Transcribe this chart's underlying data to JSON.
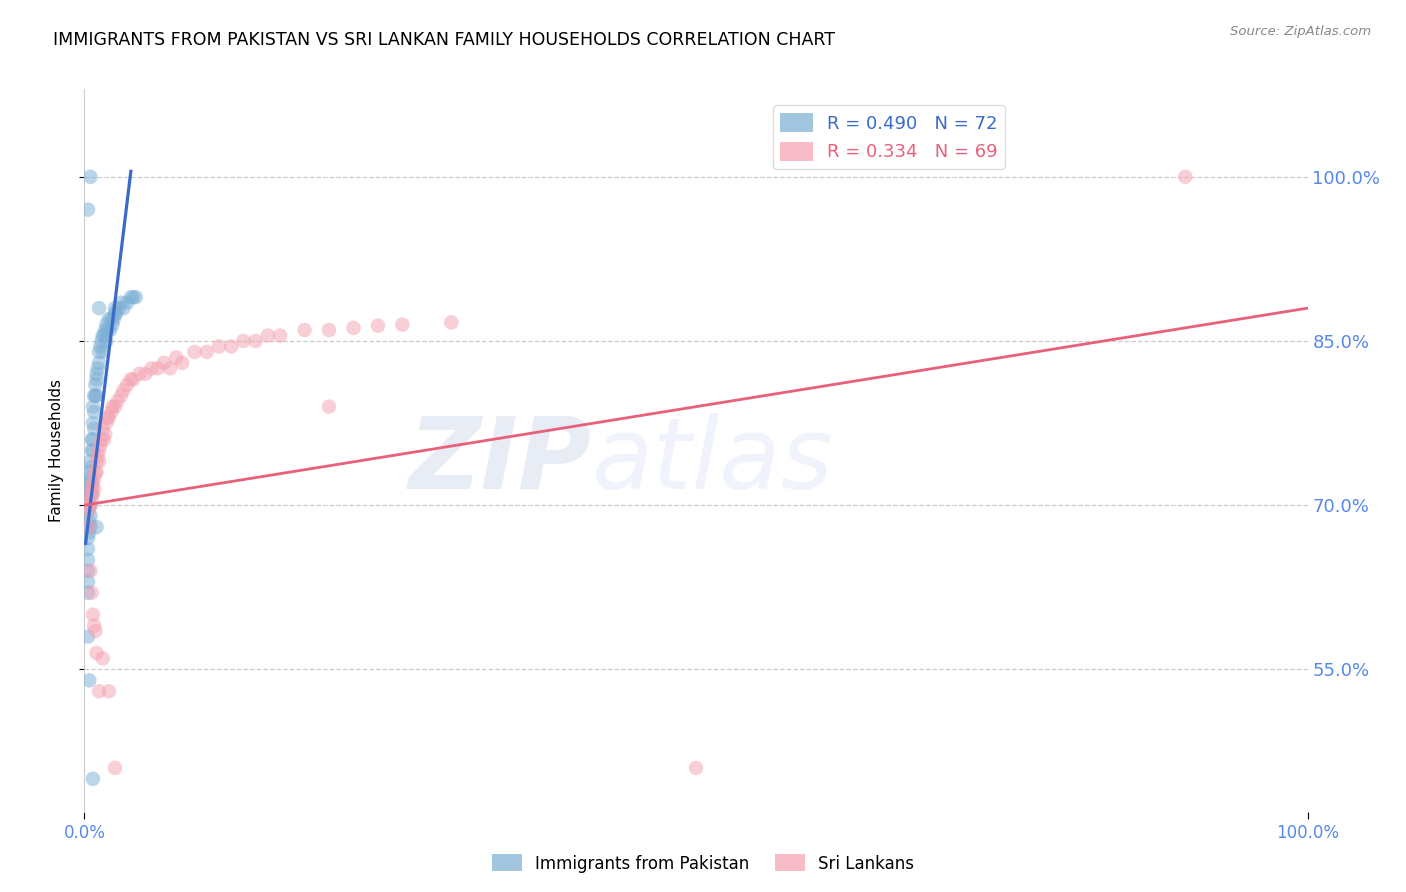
{
  "title": "IMMIGRANTS FROM PAKISTAN VS SRI LANKAN FAMILY HOUSEHOLDS CORRELATION CHART",
  "source": "Source: ZipAtlas.com",
  "ylabel": "Family Households",
  "xlim": [
    0.0,
    1.0
  ],
  "ylim": [
    0.42,
    1.08
  ],
  "blue_R": 0.49,
  "blue_N": 72,
  "pink_R": 0.334,
  "pink_N": 69,
  "blue_color": "#7BAFD4",
  "pink_color": "#F4A0B0",
  "blue_line_color": "#3A6BC8",
  "pink_line_color": "#E8607A",
  "right_tick_color": "#5588EE",
  "bottom_tick_color": "#5588EE",
  "title_fontsize": 12.5,
  "legend_fontsize": 13,
  "axis_label_fontsize": 11,
  "watermark_zip": "ZIP",
  "watermark_atlas": "atlas",
  "blue_scatter_x": [
    0.002,
    0.003,
    0.003,
    0.003,
    0.003,
    0.003,
    0.003,
    0.003,
    0.004,
    0.004,
    0.004,
    0.004,
    0.004,
    0.005,
    0.005,
    0.005,
    0.005,
    0.005,
    0.005,
    0.006,
    0.006,
    0.006,
    0.006,
    0.007,
    0.007,
    0.007,
    0.007,
    0.008,
    0.008,
    0.008,
    0.009,
    0.009,
    0.01,
    0.01,
    0.01,
    0.011,
    0.012,
    0.012,
    0.013,
    0.014,
    0.015,
    0.015,
    0.016,
    0.017,
    0.018,
    0.018,
    0.019,
    0.02,
    0.021,
    0.022,
    0.023,
    0.024,
    0.025,
    0.025,
    0.026,
    0.028,
    0.03,
    0.032,
    0.035,
    0.038,
    0.04,
    0.042,
    0.012,
    0.006,
    0.003,
    0.004,
    0.007,
    0.003,
    0.01,
    0.003,
    0.003,
    0.005
  ],
  "blue_scatter_y": [
    0.72,
    0.71,
    0.695,
    0.68,
    0.67,
    0.66,
    0.65,
    0.64,
    0.73,
    0.715,
    0.7,
    0.685,
    0.675,
    0.74,
    0.725,
    0.71,
    0.7,
    0.69,
    0.68,
    0.75,
    0.735,
    0.72,
    0.71,
    0.79,
    0.775,
    0.76,
    0.75,
    0.8,
    0.785,
    0.77,
    0.81,
    0.8,
    0.82,
    0.815,
    0.8,
    0.825,
    0.84,
    0.83,
    0.845,
    0.85,
    0.855,
    0.84,
    0.855,
    0.86,
    0.865,
    0.85,
    0.86,
    0.87,
    0.86,
    0.87,
    0.865,
    0.87,
    0.875,
    0.88,
    0.875,
    0.88,
    0.885,
    0.88,
    0.885,
    0.89,
    0.89,
    0.89,
    0.88,
    0.76,
    0.62,
    0.54,
    0.45,
    0.58,
    0.68,
    0.63,
    0.97,
    1.0
  ],
  "pink_scatter_x": [
    0.003,
    0.004,
    0.005,
    0.005,
    0.006,
    0.006,
    0.007,
    0.007,
    0.008,
    0.008,
    0.009,
    0.01,
    0.01,
    0.011,
    0.012,
    0.012,
    0.013,
    0.014,
    0.015,
    0.016,
    0.017,
    0.018,
    0.019,
    0.02,
    0.022,
    0.023,
    0.025,
    0.027,
    0.03,
    0.032,
    0.035,
    0.038,
    0.04,
    0.045,
    0.05,
    0.055,
    0.06,
    0.065,
    0.07,
    0.075,
    0.08,
    0.09,
    0.1,
    0.11,
    0.12,
    0.13,
    0.14,
    0.15,
    0.16,
    0.18,
    0.2,
    0.22,
    0.24,
    0.26,
    0.3,
    0.004,
    0.005,
    0.006,
    0.007,
    0.008,
    0.009,
    0.01,
    0.012,
    0.015,
    0.02,
    0.025,
    0.5,
    0.9,
    0.2
  ],
  "pink_scatter_y": [
    0.7,
    0.695,
    0.71,
    0.7,
    0.715,
    0.705,
    0.72,
    0.71,
    0.725,
    0.715,
    0.73,
    0.74,
    0.73,
    0.745,
    0.75,
    0.74,
    0.755,
    0.76,
    0.77,
    0.76,
    0.765,
    0.775,
    0.78,
    0.78,
    0.785,
    0.79,
    0.79,
    0.795,
    0.8,
    0.805,
    0.81,
    0.815,
    0.815,
    0.82,
    0.82,
    0.825,
    0.825,
    0.83,
    0.825,
    0.835,
    0.83,
    0.84,
    0.84,
    0.845,
    0.845,
    0.85,
    0.85,
    0.855,
    0.855,
    0.86,
    0.86,
    0.862,
    0.864,
    0.865,
    0.867,
    0.68,
    0.64,
    0.62,
    0.6,
    0.59,
    0.585,
    0.565,
    0.53,
    0.56,
    0.53,
    0.46,
    0.46,
    1.0,
    0.79
  ],
  "blue_line_x": [
    0.001,
    0.038
  ],
  "blue_line_y": [
    0.665,
    1.005
  ],
  "pink_line_x": [
    0.0,
    1.0
  ],
  "pink_line_y": [
    0.7,
    0.88
  ],
  "grid_color": "#CCCCCC",
  "background_color": "#FFFFFF"
}
